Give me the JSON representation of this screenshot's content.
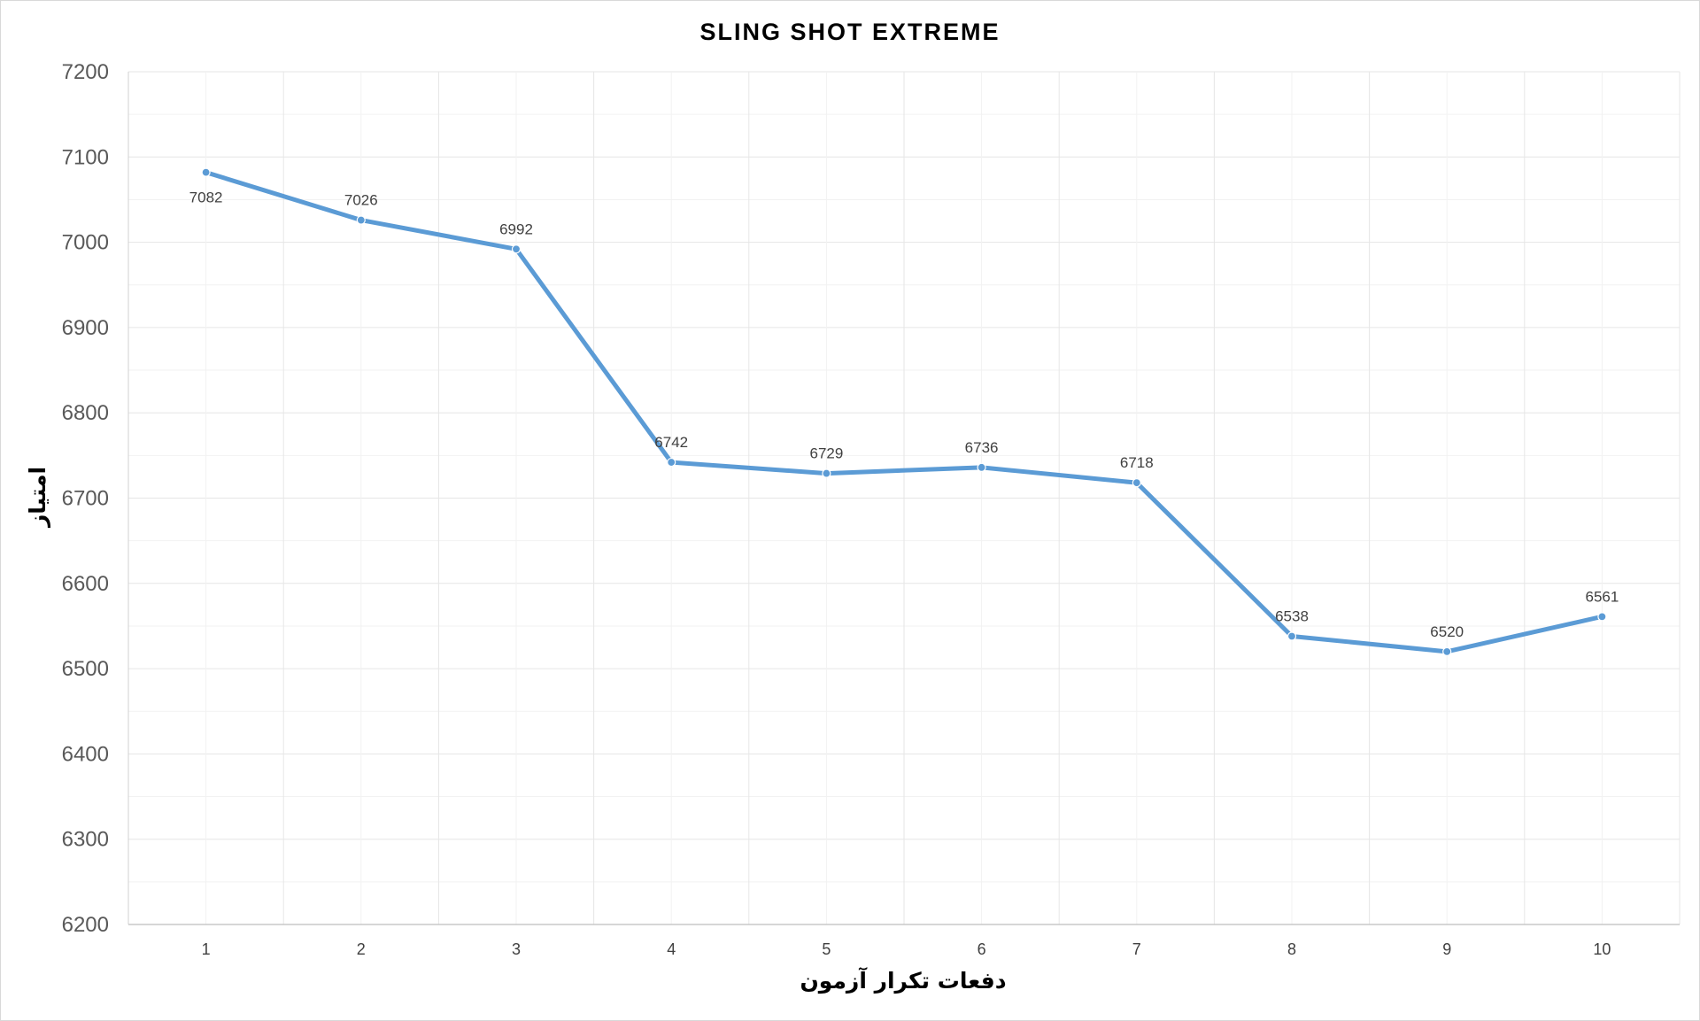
{
  "chart_data": {
    "type": "line",
    "title": "SLING SHOT EXTREME",
    "xlabel": "دفعات تکرار آزمون",
    "ylabel": "امتیاز",
    "categories": [
      "1",
      "2",
      "3",
      "4",
      "5",
      "6",
      "7",
      "8",
      "9",
      "10"
    ],
    "series": [
      {
        "values": [
          7082,
          7026,
          6992,
          6742,
          6729,
          6736,
          6718,
          6538,
          6520,
          6561
        ]
      }
    ],
    "ylim": [
      6200,
      7200
    ],
    "yticks": [
      "6200",
      "6300",
      "6400",
      "6500",
      "6600",
      "6700",
      "6800",
      "6900",
      "7000",
      "7100",
      "7200"
    ],
    "grid": true,
    "legend": "none",
    "line_color": "#5b9bd5",
    "grid_color": "#ececec"
  }
}
